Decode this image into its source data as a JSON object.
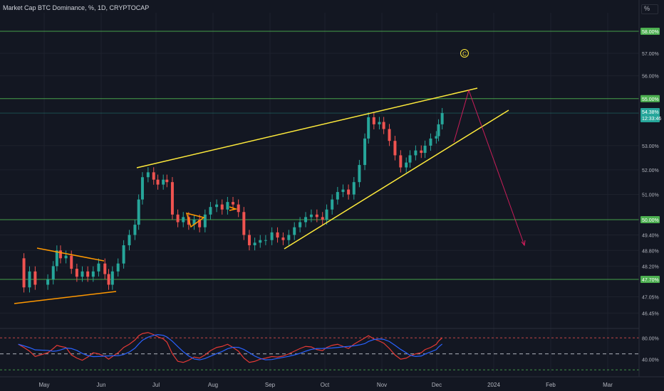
{
  "header": {
    "title": "Market Cap BTC Dominance, %, 1D, CRYPTOCAP",
    "unit_button": "%"
  },
  "chart_data": {
    "type": "line",
    "title": "Market Cap BTC Dominance, %, 1D, CRYPTOCAP",
    "xlabel": "",
    "ylabel": "",
    "ylim": [
      45.9,
      59.2
    ],
    "y_scale": "log",
    "y_ticks": [
      "57.00%",
      "56.00%",
      "53.00%",
      "52.00%",
      "51.00%",
      "49.40%",
      "48.80%",
      "48.20%",
      "47.05%",
      "46.45%"
    ],
    "x_ticks": [
      "May",
      "Jun",
      "Jul",
      "Aug",
      "Sep",
      "Oct",
      "Nov",
      "Dec",
      "2024",
      "Feb",
      "Mar"
    ],
    "horizontal_levels": [
      {
        "label": "58.00%",
        "value": 58.0,
        "color": "#4caf50"
      },
      {
        "label": "55.00%",
        "value": 55.0,
        "color": "#4caf50"
      },
      {
        "label": "50.00%",
        "value": 50.0,
        "color": "#4caf50"
      },
      {
        "label": "47.70%",
        "value": 47.7,
        "color": "#4caf50"
      }
    ],
    "last_price": {
      "label": "54.38%",
      "countdown": "12:33:46",
      "value": 54.38,
      "color": "#26a69a"
    },
    "wave_label": "C",
    "price_series": [
      [
        "Apr 21",
        48.5
      ],
      [
        "Apr 24",
        47.4
      ],
      [
        "Apr 27",
        48.0
      ],
      [
        "Apr 30",
        47.5
      ],
      [
        "May 3",
        47.7
      ],
      [
        "May 6",
        48.2
      ],
      [
        "May 8",
        48.8
      ],
      [
        "May 10",
        48.5
      ],
      [
        "May 13",
        48.6
      ],
      [
        "May 16",
        48.1
      ],
      [
        "May 19",
        47.8
      ],
      [
        "May 22",
        48.0
      ],
      [
        "May 25",
        47.8
      ],
      [
        "May 28",
        48.0
      ],
      [
        "May 31",
        48.3
      ],
      [
        "Jun 3",
        47.9
      ],
      [
        "Jun 5",
        47.5
      ],
      [
        "Jun 7",
        48.0
      ],
      [
        "Jun 10",
        48.3
      ],
      [
        "Jun 13",
        49.0
      ],
      [
        "Jun 16",
        49.4
      ],
      [
        "Jun 19",
        49.8
      ],
      [
        "Jun 21",
        50.8
      ],
      [
        "Jun 23",
        51.7
      ],
      [
        "Jun 26",
        51.9
      ],
      [
        "Jun 29",
        51.6
      ],
      [
        "Jul 2",
        51.4
      ],
      [
        "Jul 5",
        51.6
      ],
      [
        "Jul 7",
        51.5
      ],
      [
        "Jul 10",
        50.2
      ],
      [
        "Jul 13",
        49.9
      ],
      [
        "Jul 16",
        50.1
      ],
      [
        "Jul 19",
        49.8
      ],
      [
        "Jul 22",
        50.0
      ],
      [
        "Jul 25",
        49.7
      ],
      [
        "Jul 28",
        50.2
      ],
      [
        "Jul 31",
        50.5
      ],
      [
        "Aug 3",
        50.6
      ],
      [
        "Aug 6",
        50.4
      ],
      [
        "Aug 9",
        50.7
      ],
      [
        "Aug 12",
        50.6
      ],
      [
        "Aug 15",
        50.3
      ],
      [
        "Aug 18",
        49.4
      ],
      [
        "Aug 21",
        49.0
      ],
      [
        "Aug 24",
        49.1
      ],
      [
        "Aug 27",
        49.2
      ],
      [
        "Aug 30",
        49.2
      ],
      [
        "Sep 2",
        49.5
      ],
      [
        "Sep 5",
        49.3
      ],
      [
        "Sep 8",
        49.2
      ],
      [
        "Sep 11",
        49.4
      ],
      [
        "Sep 14",
        49.7
      ],
      [
        "Sep 17",
        49.9
      ],
      [
        "Sep 20",
        50.1
      ],
      [
        "Sep 23",
        50.2
      ],
      [
        "Sep 26",
        50.1
      ],
      [
        "Sep 29",
        50.0
      ],
      [
        "Oct 2",
        50.4
      ],
      [
        "Oct 5",
        50.8
      ],
      [
        "Oct 8",
        51.1
      ],
      [
        "Oct 11",
        51.2
      ],
      [
        "Oct 14",
        51.0
      ],
      [
        "Oct 17",
        51.5
      ],
      [
        "Oct 20",
        52.2
      ],
      [
        "Oct 23",
        53.3
      ],
      [
        "Oct 25",
        54.2
      ],
      [
        "Oct 28",
        53.9
      ],
      [
        "Oct 31",
        54.0
      ],
      [
        "Nov 2",
        53.7
      ],
      [
        "Nov 5",
        53.2
      ],
      [
        "Nov 8",
        52.6
      ],
      [
        "Nov 11",
        52.1
      ],
      [
        "Nov 14",
        52.3
      ],
      [
        "Nov 16",
        52.6
      ],
      [
        "Nov 19",
        52.8
      ],
      [
        "Nov 22",
        52.7
      ],
      [
        "Nov 24",
        53.0
      ],
      [
        "Nov 27",
        53.3
      ],
      [
        "Nov 30",
        53.4
      ],
      [
        "Dec 2",
        53.9
      ],
      [
        "Dec 4",
        54.38
      ]
    ],
    "rsi_series": [
      [
        "Apr 21",
        68
      ],
      [
        "Apr 24",
        62
      ],
      [
        "Apr 27",
        55
      ],
      [
        "Apr 30",
        45
      ],
      [
        "May 3",
        52
      ],
      [
        "May 6",
        60
      ],
      [
        "May 8",
        66
      ],
      [
        "May 10",
        64
      ],
      [
        "May 13",
        62
      ],
      [
        "May 16",
        48
      ],
      [
        "May 19",
        42
      ],
      [
        "May 22",
        38
      ],
      [
        "May 25",
        44
      ],
      [
        "May 28",
        52
      ],
      [
        "May 31",
        50
      ],
      [
        "Jun 3",
        45
      ],
      [
        "Jun 5",
        40
      ],
      [
        "Jun 7",
        45
      ],
      [
        "Jun 10",
        52
      ],
      [
        "Jun 13",
        62
      ],
      [
        "Jun 16",
        68
      ],
      [
        "Jun 19",
        76
      ],
      [
        "Jun 21",
        84
      ],
      [
        "Jun 23",
        88
      ],
      [
        "Jun 26",
        90
      ],
      [
        "Jun 29",
        86
      ],
      [
        "Jul 2",
        82
      ],
      [
        "Jul 5",
        78
      ],
      [
        "Jul 7",
        72
      ],
      [
        "Jul 10",
        50
      ],
      [
        "Jul 13",
        36
      ],
      [
        "Jul 16",
        34
      ],
      [
        "Jul 19",
        38
      ],
      [
        "Jul 22",
        44
      ],
      [
        "Jul 25",
        42
      ],
      [
        "Jul 28",
        48
      ],
      [
        "Jul 31",
        56
      ],
      [
        "Aug 3",
        62
      ],
      [
        "Aug 6",
        64
      ],
      [
        "Aug 9",
        68
      ],
      [
        "Aug 12",
        62
      ],
      [
        "Aug 15",
        55
      ],
      [
        "Aug 18",
        42
      ],
      [
        "Aug 21",
        34
      ],
      [
        "Aug 24",
        36
      ],
      [
        "Aug 27",
        40
      ],
      [
        "Aug 30",
        42
      ],
      [
        "Sep 2",
        45
      ],
      [
        "Sep 5",
        44
      ],
      [
        "Sep 8",
        46
      ],
      [
        "Sep 11",
        50
      ],
      [
        "Sep 14",
        55
      ],
      [
        "Sep 17",
        60
      ],
      [
        "Sep 20",
        64
      ],
      [
        "Sep 23",
        63
      ],
      [
        "Sep 26",
        58
      ],
      [
        "Sep 29",
        56
      ],
      [
        "Oct 2",
        62
      ],
      [
        "Oct 5",
        66
      ],
      [
        "Oct 8",
        68
      ],
      [
        "Oct 11",
        64
      ],
      [
        "Oct 14",
        60
      ],
      [
        "Oct 17",
        68
      ],
      [
        "Oct 20",
        74
      ],
      [
        "Oct 23",
        80
      ],
      [
        "Oct 25",
        84
      ],
      [
        "Oct 28",
        78
      ],
      [
        "Oct 31",
        74
      ],
      [
        "Nov 2",
        70
      ],
      [
        "Nov 5",
        60
      ],
      [
        "Nov 8",
        48
      ],
      [
        "Nov 11",
        40
      ],
      [
        "Nov 14",
        42
      ],
      [
        "Nov 16",
        46
      ],
      [
        "Nov 19",
        50
      ],
      [
        "Nov 22",
        52
      ],
      [
        "Nov 24",
        58
      ],
      [
        "Nov 27",
        62
      ],
      [
        "Nov 30",
        68
      ],
      [
        "Dec 2",
        74
      ],
      [
        "Dec 4",
        80
      ]
    ],
    "rsi_axis": {
      "ylim": [
        15,
        95
      ],
      "ticks": [
        "80.00%",
        "40.00%"
      ],
      "overbought": 80,
      "oversold": 20,
      "mid": 50
    },
    "colors": {
      "background": "#131722",
      "candle_up": "#26a69a",
      "candle_down": "#ef5350",
      "trendline": "#ffeb3b",
      "pattern": "#ff9800",
      "projection": "#e91e63",
      "rsi_line": "#e53935",
      "rsi_ma": "#2962ff",
      "level": "#4caf50"
    }
  }
}
